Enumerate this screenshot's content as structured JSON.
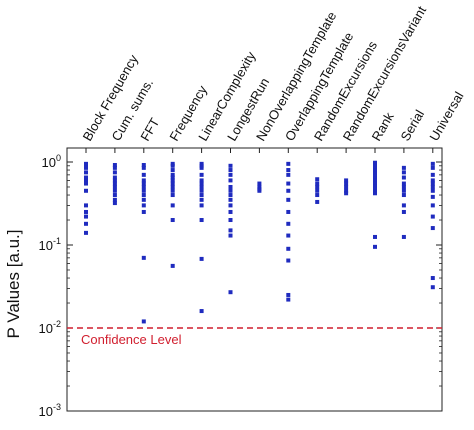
{
  "chart_data": {
    "type": "scatter",
    "title": "",
    "xlabel": "",
    "ylabel": "P Values [a.u.]",
    "yscale": "log",
    "ylim": [
      0.001,
      1.5
    ],
    "yticks": [
      {
        "value": 1,
        "base": "10",
        "exp": "0"
      },
      {
        "value": 0.1,
        "base": "10",
        "exp": "-1"
      },
      {
        "value": 0.01,
        "base": "10",
        "exp": "-2"
      },
      {
        "value": 0.001,
        "base": "10",
        "exp": "-3"
      }
    ],
    "grid": false,
    "marker_color": "#1f2bbf",
    "categories": [
      "Block Frequency",
      "Cum. sums.",
      "FFT",
      "Frequency",
      "LinearComplexity",
      "LongestRun",
      "NonOverlappingTemplate",
      "OverlappingTemplate",
      "RandomExcursions",
      "RandomExcursionsVariant",
      "Rank",
      "Serial",
      "Universal"
    ],
    "series": [
      {
        "values": [
          [
            0.95,
            0.9,
            0.85,
            0.75,
            0.65,
            0.6,
            0.55,
            0.45,
            0.3,
            0.25,
            0.22,
            0.18,
            0.14
          ]
        ]
      },
      {
        "values": [
          [
            0.92,
            0.85,
            0.75,
            0.65,
            0.6,
            0.55,
            0.5,
            0.45,
            0.4,
            0.35,
            0.32
          ]
        ]
      },
      {
        "values": [
          [
            0.92,
            0.85,
            0.7,
            0.6,
            0.55,
            0.5,
            0.45,
            0.4,
            0.35,
            0.3,
            0.25,
            0.07,
            0.012
          ]
        ]
      },
      {
        "values": [
          [
            0.95,
            0.9,
            0.8,
            0.7,
            0.65,
            0.6,
            0.55,
            0.5,
            0.45,
            0.4,
            0.3,
            0.2,
            0.056
          ]
        ]
      },
      {
        "values": [
          [
            0.95,
            0.9,
            0.85,
            0.7,
            0.6,
            0.55,
            0.5,
            0.45,
            0.4,
            0.35,
            0.3,
            0.2,
            0.068,
            0.016
          ]
        ]
      },
      {
        "values": [
          [
            0.9,
            0.8,
            0.7,
            0.6,
            0.5,
            0.45,
            0.4,
            0.35,
            0.3,
            0.25,
            0.2,
            0.15,
            0.13,
            0.027
          ]
        ]
      },
      {
        "values": [
          [
            0.55,
            0.5,
            0.47,
            0.45
          ]
        ]
      },
      {
        "values": [
          [
            0.95,
            0.8,
            0.7,
            0.55,
            0.45,
            0.35,
            0.25,
            0.18,
            0.13,
            0.09,
            0.065,
            0.025,
            0.022
          ]
        ]
      },
      {
        "values": [
          [
            0.62,
            0.55,
            0.5,
            0.45,
            0.4,
            0.33
          ]
        ]
      },
      {
        "values": [
          [
            0.6,
            0.55,
            0.5,
            0.45,
            0.42
          ]
        ]
      },
      {
        "values": [
          [
            0.98,
            0.92,
            0.88,
            0.8,
            0.72,
            0.65,
            0.6,
            0.55,
            0.5,
            0.45,
            0.42,
            0.125,
            0.095
          ]
        ]
      },
      {
        "values": [
          [
            0.85,
            0.75,
            0.65,
            0.55,
            0.5,
            0.45,
            0.4,
            0.3,
            0.25,
            0.125
          ]
        ]
      },
      {
        "values": [
          [
            0.95,
            0.85,
            0.7,
            0.6,
            0.55,
            0.5,
            0.45,
            0.38,
            0.3,
            0.22,
            0.16,
            0.04,
            0.031
          ]
        ]
      }
    ],
    "threshold": {
      "value": 0.01,
      "label": "Confidence Level",
      "color": "#d11f2f"
    }
  }
}
